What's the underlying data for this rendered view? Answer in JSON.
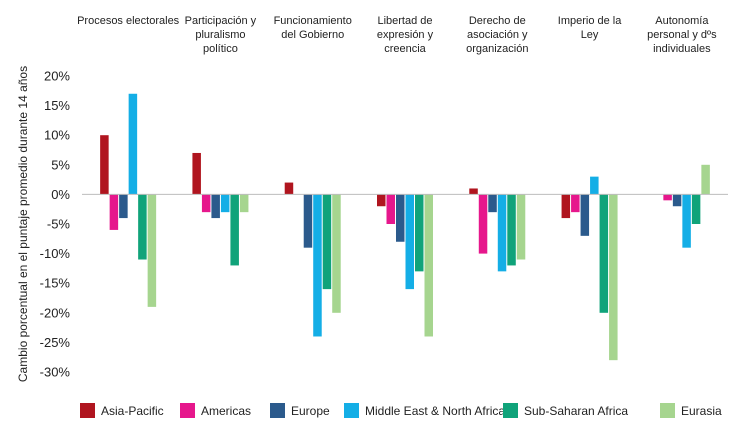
{
  "chart_data": {
    "type": "bar",
    "ylabel": "Cambio porcentual en el puntaje promedio durante 14 años",
    "ylim": [
      -30,
      20
    ],
    "yticks": [
      "20%",
      "15%",
      "10%",
      "5%",
      "0%",
      "-5%",
      "-10%",
      "-15%",
      "-20%",
      "-25%",
      "-30%"
    ],
    "ytick_values": [
      20,
      15,
      10,
      5,
      0,
      -5,
      -10,
      -15,
      -20,
      -25,
      -30
    ],
    "grid": false,
    "legend_position": "bottom",
    "categories": [
      [
        "Procesos electorales"
      ],
      [
        "Participación y",
        "pluralismo",
        "político"
      ],
      [
        "Funcionamiento",
        "del Gobierno"
      ],
      [
        "Libertad de",
        "expresión y",
        "creencia"
      ],
      [
        "Derecho de",
        "asociación y",
        "organización"
      ],
      [
        "Imperio de la",
        "Ley"
      ],
      [
        "Autonomía",
        "personal y dºs",
        "individuales"
      ]
    ],
    "series": [
      {
        "name": "Asia-Pacific",
        "color": "#b0151f",
        "values": [
          10,
          7,
          2,
          -2,
          1,
          -4,
          0
        ]
      },
      {
        "name": "Americas",
        "color": "#e6178c",
        "values": [
          -6,
          -3,
          0,
          -5,
          -10,
          -3,
          -1
        ]
      },
      {
        "name": "Europe",
        "color": "#2b5a8c",
        "values": [
          -4,
          -4,
          -9,
          -8,
          -3,
          -7,
          -2
        ]
      },
      {
        "name": "Middle East & North Africa",
        "color": "#14aee6",
        "values": [
          17,
          -3,
          -24,
          -16,
          -13,
          3,
          -9
        ]
      },
      {
        "name": "Sub-Saharan Africa",
        "color": "#10a37a",
        "values": [
          -11,
          -12,
          -16,
          -13,
          -12,
          -20,
          -5
        ]
      },
      {
        "name": "Eurasia",
        "color": "#a6d58f",
        "values": [
          -19,
          -3,
          -20,
          -24,
          -11,
          -28,
          5
        ]
      }
    ]
  }
}
